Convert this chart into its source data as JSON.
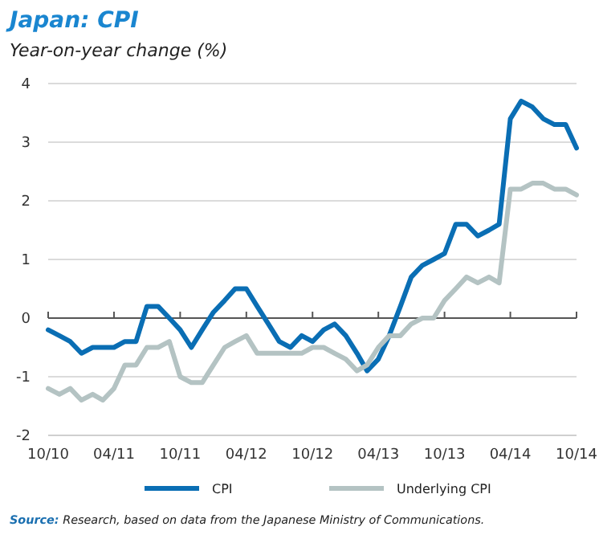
{
  "chart_data": {
    "type": "line",
    "title": "Japan: CPI",
    "subtitle": "Year-on-year change (%)",
    "x": [
      "2010-10",
      "2010-11",
      "2010-12",
      "2011-01",
      "2011-02",
      "2011-03",
      "2011-04",
      "2011-05",
      "2011-06",
      "2011-07",
      "2011-08",
      "2011-09",
      "2011-10",
      "2011-11",
      "2011-12",
      "2012-01",
      "2012-02",
      "2012-03",
      "2012-04",
      "2012-05",
      "2012-06",
      "2012-07",
      "2012-08",
      "2012-09",
      "2012-10",
      "2012-11",
      "2012-12",
      "2013-01",
      "2013-02",
      "2013-03",
      "2013-04",
      "2013-05",
      "2013-06",
      "2013-07",
      "2013-08",
      "2013-09",
      "2013-10",
      "2013-11",
      "2013-12",
      "2014-01",
      "2014-02",
      "2014-03",
      "2014-04",
      "2014-05",
      "2014-06",
      "2014-07",
      "2014-08",
      "2014-09",
      "2014-10"
    ],
    "series": [
      {
        "name": "CPI",
        "color": "#0a6eb4",
        "values": [
          -0.2,
          -0.3,
          -0.4,
          -0.6,
          -0.5,
          -0.5,
          -0.5,
          -0.4,
          -0.4,
          0.2,
          0.2,
          0.0,
          -0.2,
          -0.5,
          -0.2,
          0.1,
          0.3,
          0.5,
          0.5,
          0.2,
          -0.1,
          -0.4,
          -0.5,
          -0.3,
          -0.4,
          -0.2,
          -0.1,
          -0.3,
          -0.6,
          -0.9,
          -0.7,
          -0.3,
          0.2,
          0.7,
          0.9,
          1.0,
          1.1,
          1.6,
          1.6,
          1.4,
          1.5,
          1.6,
          3.4,
          3.7,
          3.6,
          3.4,
          3.3,
          3.3,
          2.9
        ]
      },
      {
        "name": "Underlying CPI",
        "color": "#b4c3c3",
        "values": [
          -1.2,
          -1.3,
          -1.2,
          -1.4,
          -1.3,
          -1.4,
          -1.2,
          -0.8,
          -0.8,
          -0.5,
          -0.5,
          -0.4,
          -1.0,
          -1.1,
          -1.1,
          -0.8,
          -0.5,
          -0.4,
          -0.3,
          -0.6,
          -0.6,
          -0.6,
          -0.6,
          -0.6,
          -0.5,
          -0.5,
          -0.6,
          -0.7,
          -0.9,
          -0.8,
          -0.5,
          -0.3,
          -0.3,
          -0.1,
          0.0,
          0.0,
          0.3,
          0.5,
          0.7,
          0.6,
          0.7,
          0.6,
          2.2,
          2.2,
          2.3,
          2.3,
          2.2,
          2.2,
          2.1
        ]
      }
    ],
    "xlim": [
      "2010-10",
      "2014-10"
    ],
    "xticks": [
      {
        "value": "2010-10",
        "label": "10/10"
      },
      {
        "value": "2011-04",
        "label": "04/11"
      },
      {
        "value": "2011-10",
        "label": "10/11"
      },
      {
        "value": "2012-04",
        "label": "04/12"
      },
      {
        "value": "2012-10",
        "label": "10/12"
      },
      {
        "value": "2013-04",
        "label": "04/13"
      },
      {
        "value": "2013-10",
        "label": "10/13"
      },
      {
        "value": "2014-04",
        "label": "04/14"
      },
      {
        "value": "2014-10",
        "label": "10/14"
      }
    ],
    "ylim": [
      -2,
      4
    ],
    "yticks": [
      -2,
      -1,
      0,
      1,
      2,
      3,
      4
    ],
    "grid": "y",
    "legend": "bottom",
    "marker": "none",
    "line_style": "solid",
    "annotations": [
      "Source: Research, based on data from the Japanese Ministry of Communications."
    ]
  }
}
